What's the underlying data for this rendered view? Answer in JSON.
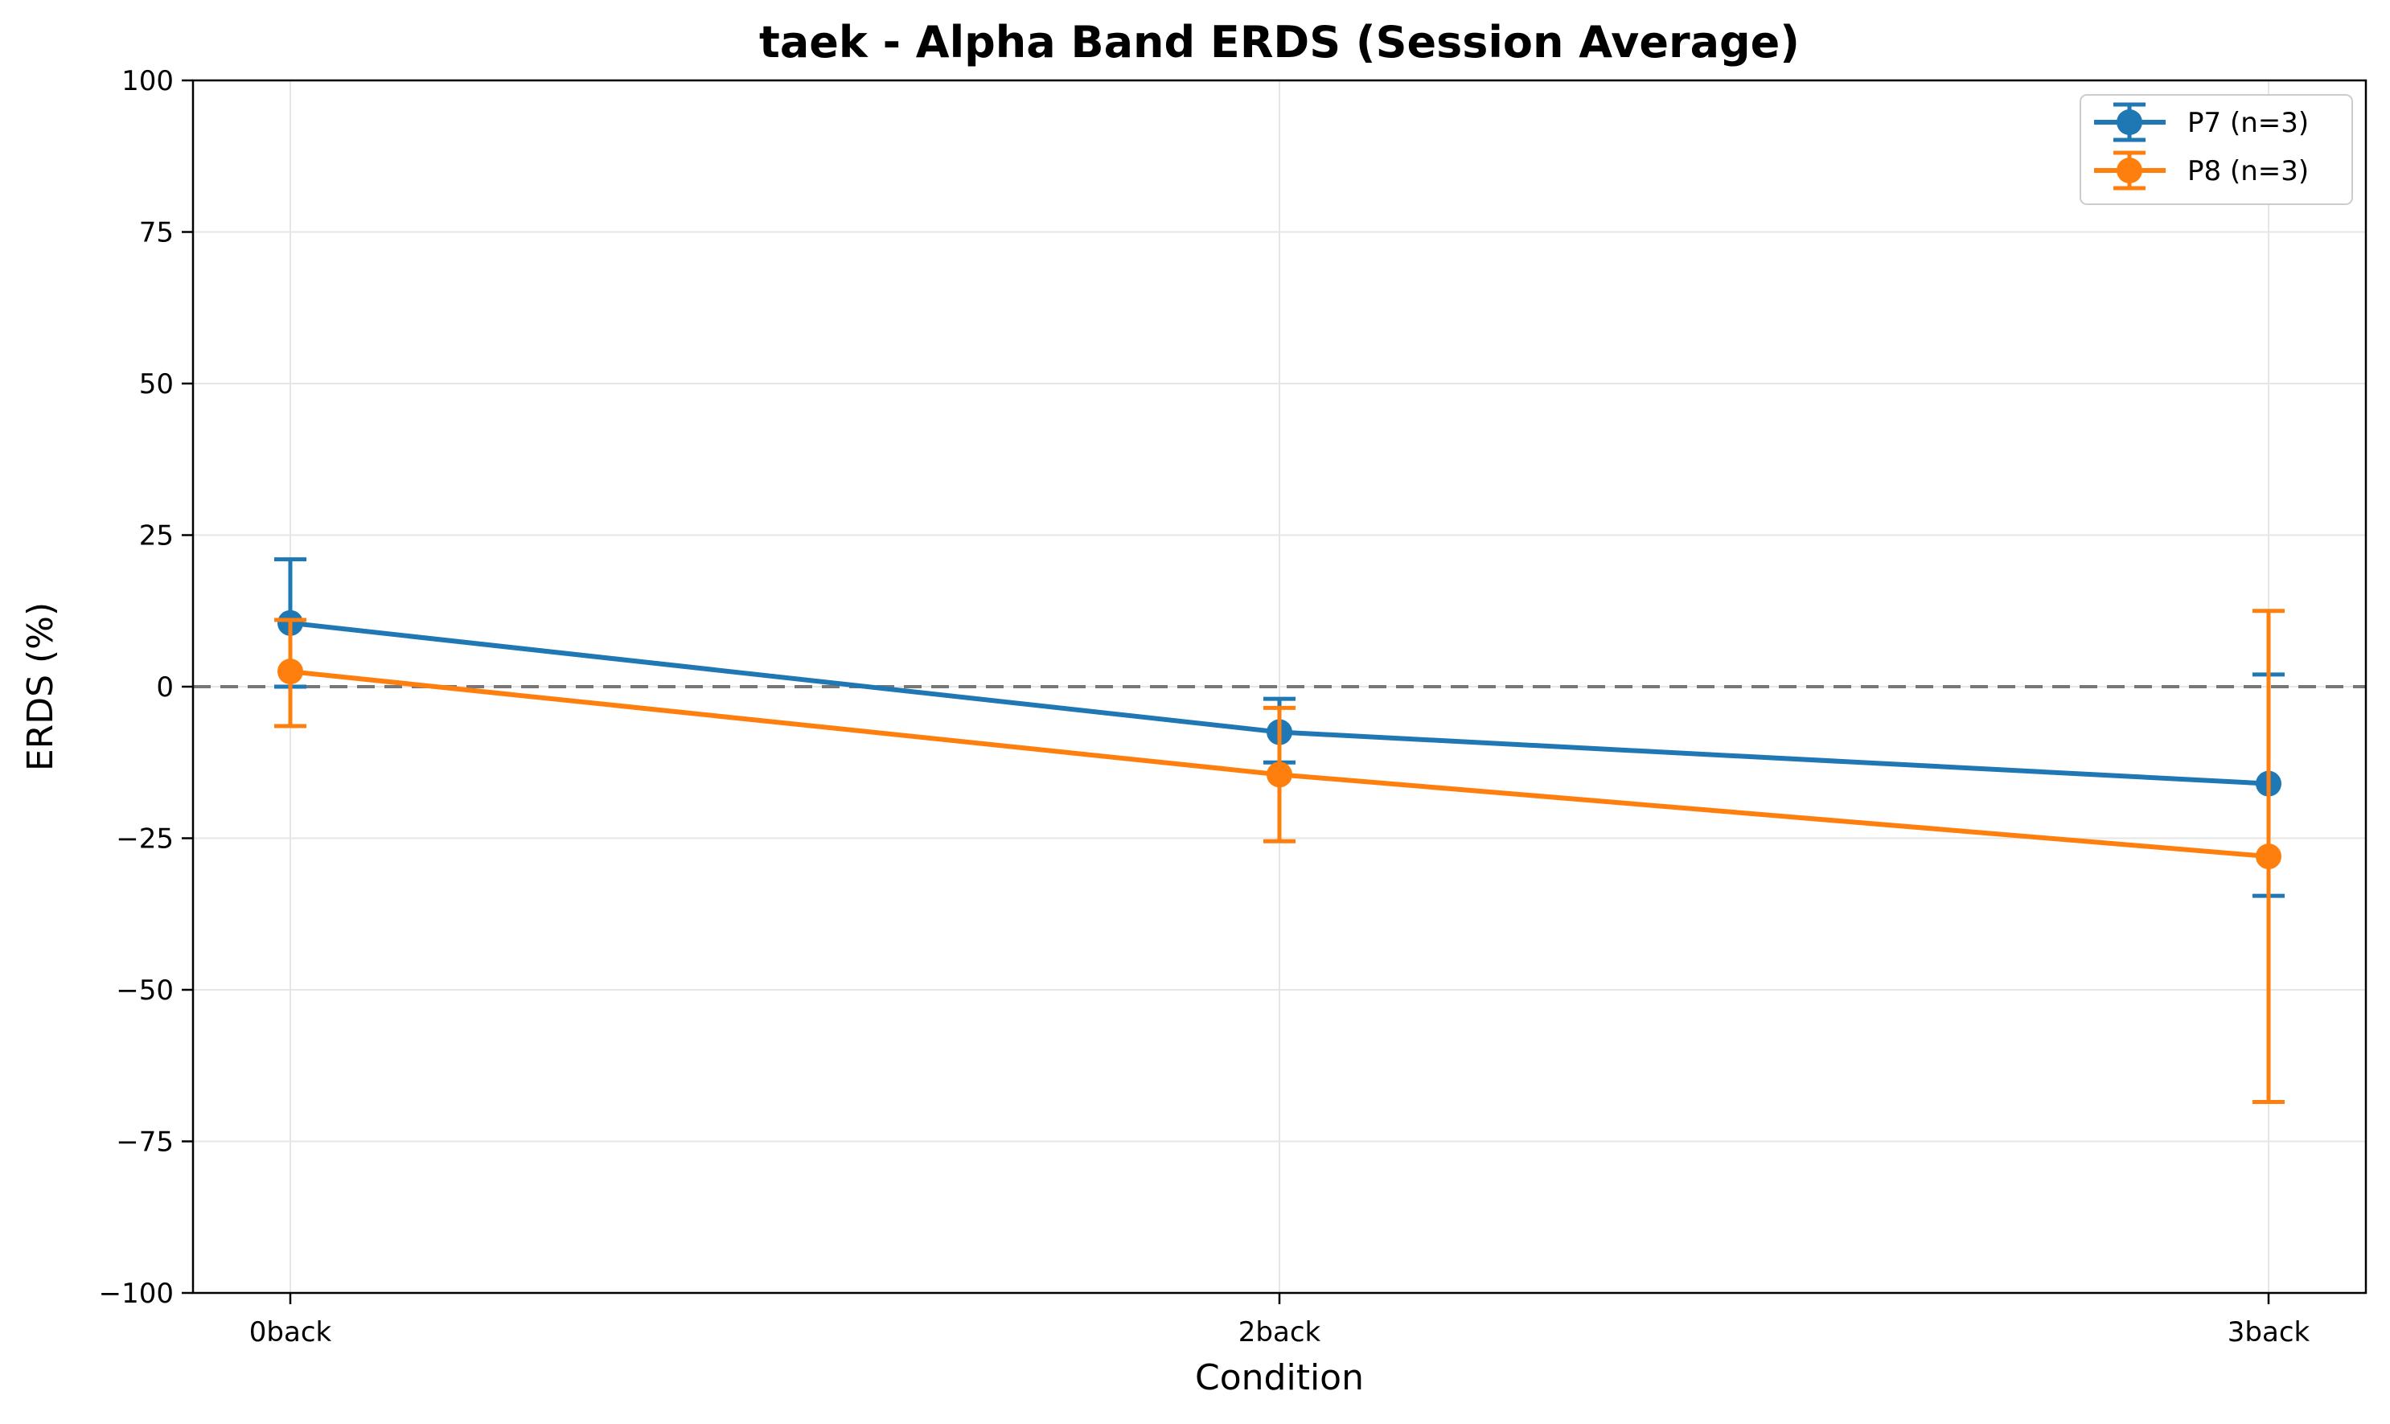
{
  "chart_data": {
    "type": "line",
    "title": "taek - Alpha Band ERDS (Session Average)",
    "xlabel": "Condition",
    "ylabel": "ERDS (%)",
    "categories": [
      "0back",
      "2back",
      "3back"
    ],
    "ylim": [
      -100,
      100
    ],
    "yticks": [
      100,
      75,
      50,
      25,
      0,
      -25,
      -50,
      -75,
      -100
    ],
    "ytick_labels": [
      "100",
      "75",
      "50",
      "25",
      "0",
      "−25",
      "−50",
      "−75",
      "−100"
    ],
    "grid": true,
    "reference_line": 0,
    "legend_position": "top-right",
    "series": [
      {
        "name": "P7 (n=3)",
        "color": "#1f77b4",
        "values": [
          10.5,
          -7.5,
          -16.0
        ],
        "error_lower": [
          0.0,
          -12.5,
          -34.5
        ],
        "error_upper": [
          21.0,
          -2.0,
          2.0
        ]
      },
      {
        "name": "P8 (n=3)",
        "color": "#ff7f0e",
        "values": [
          2.5,
          -14.5,
          -28.0
        ],
        "error_lower": [
          -6.5,
          -25.5,
          -68.5
        ],
        "error_upper": [
          11.0,
          -3.5,
          12.5
        ]
      }
    ]
  }
}
